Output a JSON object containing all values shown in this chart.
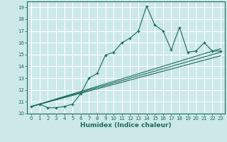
{
  "xlabel": "Humidex (Indice chaleur)",
  "bg_color": "#cce8e8",
  "grid_color": "#ffffff",
  "line_color": "#1a6b5a",
  "xlim": [
    -0.5,
    23.5
  ],
  "ylim": [
    10,
    19.5
  ],
  "xticks": [
    0,
    1,
    2,
    3,
    4,
    5,
    6,
    7,
    8,
    9,
    10,
    11,
    12,
    13,
    14,
    15,
    16,
    17,
    18,
    19,
    20,
    21,
    22,
    23
  ],
  "yticks": [
    10,
    11,
    12,
    13,
    14,
    15,
    16,
    17,
    18,
    19
  ],
  "series1_x": [
    0,
    1,
    2,
    3,
    4,
    5,
    6,
    7,
    8,
    9,
    10,
    11,
    12,
    13,
    14,
    15,
    16,
    17,
    18,
    19,
    20,
    21,
    22,
    23
  ],
  "series1_y": [
    10.6,
    10.8,
    10.5,
    10.5,
    10.6,
    10.8,
    11.7,
    13.0,
    13.4,
    14.95,
    15.2,
    16.0,
    16.4,
    17.0,
    19.1,
    17.5,
    17.0,
    15.4,
    17.3,
    15.2,
    15.3,
    16.0,
    15.3,
    15.3
  ],
  "series2_x": [
    0,
    23
  ],
  "series2_y": [
    10.6,
    15.5
  ],
  "series3_x": [
    0,
    23
  ],
  "series3_y": [
    10.6,
    15.2
  ],
  "series4_x": [
    0,
    23
  ],
  "series4_y": [
    10.6,
    14.9
  ]
}
